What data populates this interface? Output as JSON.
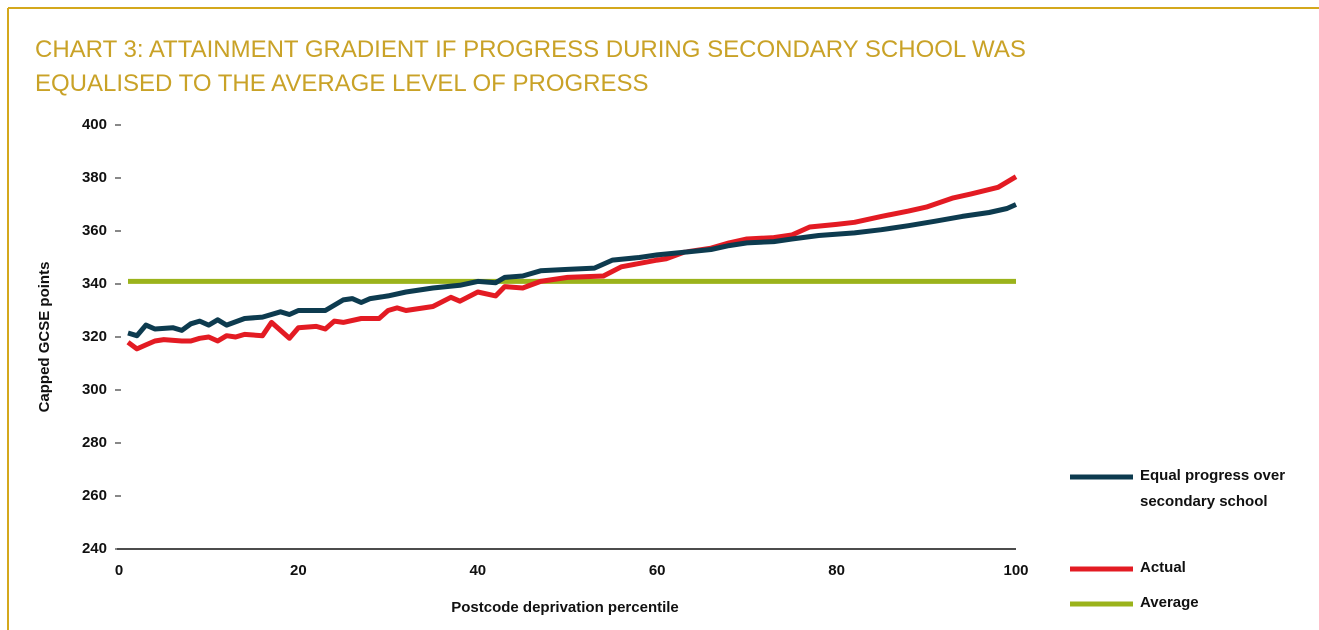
{
  "chart_data": {
    "type": "line",
    "title": "CHART 3: ATTAINMENT GRADIENT IF PROGRESS DURING SECONDARY SCHOOL WAS EQUALISED TO THE AVERAGE LEVEL OF PROGRESS",
    "x_label": "Postcode deprivation percentile",
    "y_label": "Capped GCSE points",
    "xlim": [
      0,
      100
    ],
    "xticks": [
      0,
      20,
      40,
      60,
      80,
      100
    ],
    "ylim": [
      240,
      400
    ],
    "yticks": [
      240,
      260,
      280,
      300,
      320,
      340,
      360,
      380,
      400
    ],
    "legend": "right",
    "series": [
      {
        "name": "Equal progress over secondary school",
        "color": "#0d3b4f",
        "x": [
          1,
          2,
          3,
          4,
          6,
          7,
          8,
          9,
          10,
          11,
          12,
          14,
          16,
          18,
          19,
          20,
          23,
          25,
          26,
          27,
          28,
          30,
          32,
          35,
          38,
          40,
          42,
          43,
          45,
          47,
          50,
          53,
          55,
          58,
          60,
          63,
          66,
          68,
          70,
          73,
          75,
          78,
          82,
          85,
          88,
          91,
          94,
          97,
          99,
          100
        ],
        "values": [
          321.5,
          320.5,
          324.5,
          323,
          323.5,
          322.5,
          325,
          326,
          324.5,
          326.5,
          324.5,
          327,
          327.5,
          329.5,
          328.5,
          330,
          330,
          334,
          334.5,
          333,
          334.5,
          335.5,
          337,
          338.5,
          339.5,
          341,
          340.5,
          342.5,
          343,
          345,
          345.5,
          346,
          349,
          350,
          351,
          352,
          353,
          354.5,
          355.5,
          356,
          357,
          358.3,
          359.3,
          360.5,
          362,
          363.7,
          365.5,
          367,
          368.5,
          370
        ]
      },
      {
        "name": "Actual",
        "color": "#e31b23",
        "x": [
          1,
          2,
          3,
          4,
          5,
          7,
          8,
          9,
          10,
          11,
          12,
          13,
          14,
          16,
          17,
          19,
          20,
          22,
          23,
          24,
          25,
          27,
          29,
          30,
          31,
          32,
          35,
          37,
          38,
          40,
          42,
          43,
          45,
          47,
          50,
          54,
          56,
          60,
          61,
          63,
          66,
          68,
          70,
          73,
          75,
          77,
          80,
          82,
          85,
          88,
          90,
          93,
          95,
          98,
          100
        ],
        "values": [
          318,
          315.5,
          317,
          318.5,
          319,
          318.5,
          318.5,
          319.5,
          320,
          318.5,
          320.5,
          320,
          321,
          320.5,
          325.5,
          319.5,
          323.5,
          324,
          323,
          326,
          325.5,
          327,
          327,
          330,
          331,
          330,
          331.5,
          335,
          333.5,
          337,
          335.5,
          339,
          338.5,
          341,
          342.5,
          343,
          346.5,
          349,
          349.5,
          352,
          353.5,
          355.5,
          357,
          357.5,
          358.5,
          361.5,
          362.5,
          363.3,
          365.5,
          367.5,
          369,
          372.5,
          374,
          376.5,
          380.5
        ]
      },
      {
        "name": "Average",
        "color": "#9bb31b",
        "x": [
          1,
          100
        ],
        "values": [
          341,
          341
        ]
      }
    ]
  }
}
